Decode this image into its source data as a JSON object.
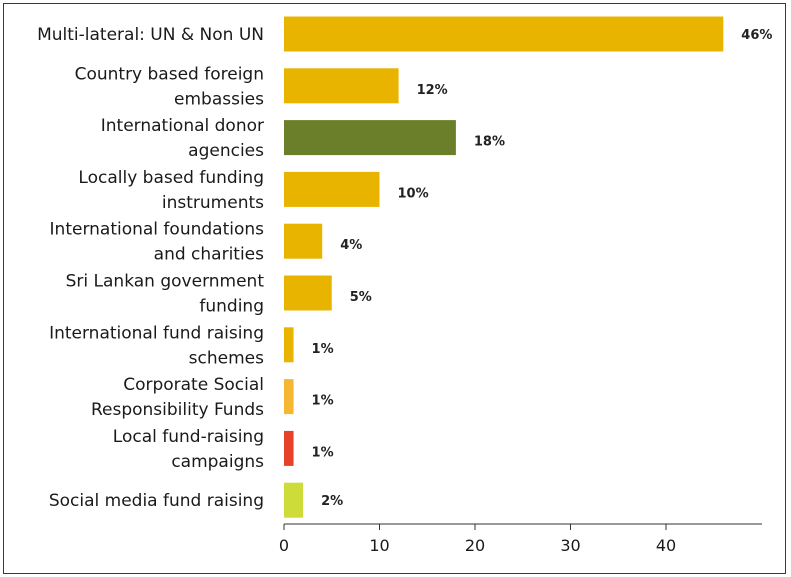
{
  "chart_data": {
    "type": "bar",
    "orientation": "horizontal",
    "title": "",
    "xlabel": "",
    "ylabel": "",
    "xlim": [
      0,
      50
    ],
    "x_ticks": [
      0,
      10,
      20,
      30,
      40
    ],
    "grid": false,
    "legend": "none",
    "categories": [
      "Multi-lateral: UN & Non UN",
      "Country based foreign\nembassies",
      "International donor\nagencies",
      "Locally based funding\ninstruments",
      "International foundations\nand charities",
      "Sri Lankan government\nfunding",
      "International fund raising\nschemes",
      "Corporate Social\nResponsibility Funds",
      "Local fund-raising\ncampaigns",
      "Social media fund raising"
    ],
    "values": [
      46,
      12,
      18,
      10,
      4,
      5,
      1,
      1,
      1,
      2
    ],
    "value_labels": [
      "46%",
      "12%",
      "18%",
      "10%",
      "4%",
      "5%",
      "1%",
      "1%",
      "1%",
      "2%"
    ],
    "colors": [
      "#e8b400",
      "#e8b400",
      "#6b7f2a",
      "#e8b400",
      "#e8b400",
      "#e8b400",
      "#e8b400",
      "#f5b731",
      "#e8412a",
      "#cddc39"
    ]
  }
}
